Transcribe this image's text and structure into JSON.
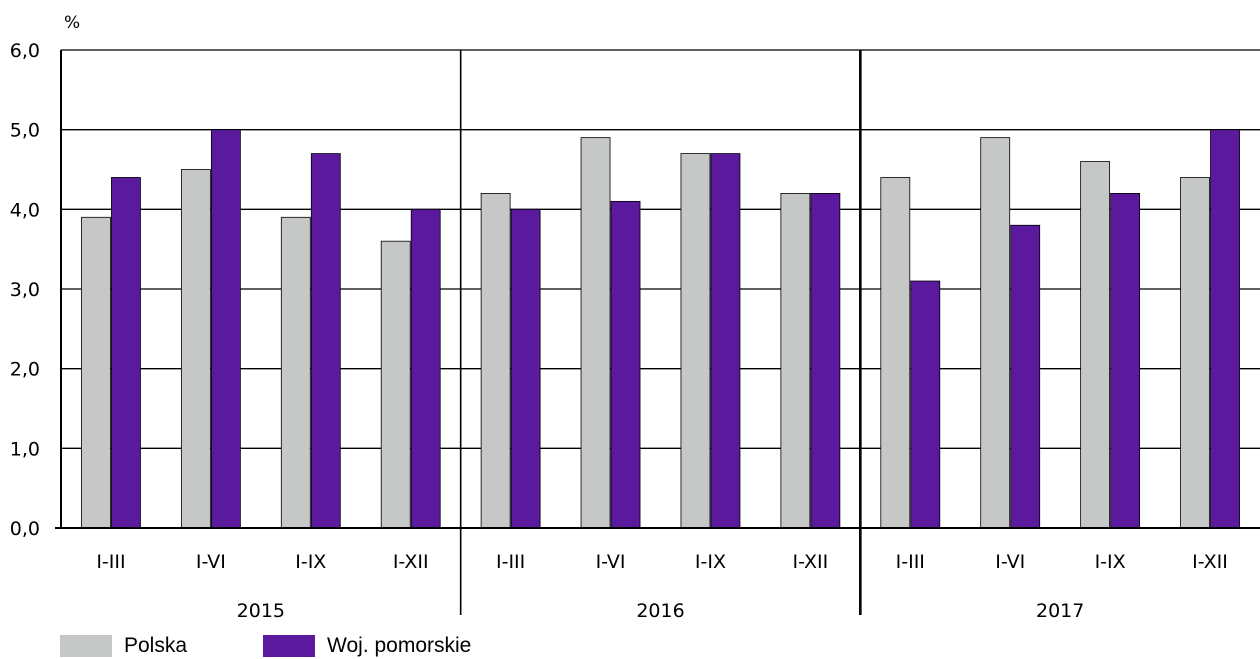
{
  "chart_data": {
    "type": "bar",
    "unit_label": "%",
    "ylim": [
      0,
      6
    ],
    "y_ticks": [
      "0,0",
      "1,0",
      "2,0",
      "3,0",
      "4,0",
      "5,0",
      "6,0"
    ],
    "grid": true,
    "legend_position": "bottom-left",
    "groups": [
      {
        "label": "2015",
        "categories": [
          "I-III",
          "I-VI",
          "I-IX",
          "I-XII"
        ]
      },
      {
        "label": "2016",
        "categories": [
          "I-III",
          "I-VI",
          "I-IX",
          "I-XII"
        ]
      },
      {
        "label": "2017",
        "categories": [
          "I-III",
          "I-VI",
          "I-IX",
          "I-XII"
        ]
      }
    ],
    "categories": [
      "I-III",
      "I-VI",
      "I-IX",
      "I-XII",
      "I-III",
      "I-VI",
      "I-IX",
      "I-XII",
      "I-III",
      "I-VI",
      "I-IX",
      "I-XII"
    ],
    "series": [
      {
        "name": "Polska",
        "color": "#c6c7c7",
        "values": [
          3.9,
          4.5,
          3.9,
          3.6,
          4.2,
          4.9,
          4.7,
          4.2,
          4.4,
          4.9,
          4.6,
          4.4
        ]
      },
      {
        "name": "Woj. pomorskie",
        "color": "#5b1a9e",
        "values": [
          4.4,
          5.0,
          4.7,
          4.0,
          4.0,
          4.1,
          4.7,
          4.2,
          3.1,
          3.8,
          4.2,
          5.0
        ]
      }
    ]
  }
}
